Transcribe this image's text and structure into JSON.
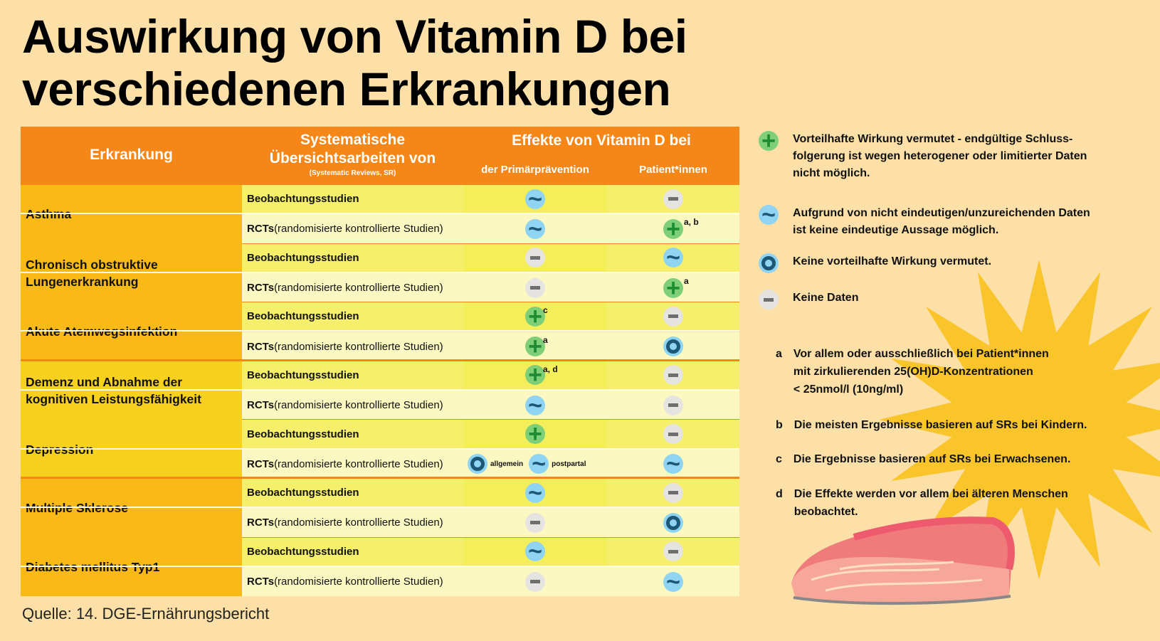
{
  "title_line1": "Auswirkung von Vitamin D bei",
  "title_line2": "verschiedenen Erkrankungen",
  "header": {
    "disease": "Erkrankung",
    "reviews1": "Systematische",
    "reviews2": "Übersichtsarbeiten von",
    "reviews_sub": "(Systematic Reviews, SR)",
    "effects": "Effekte von Vitamin D bei",
    "prim": "der Primärprävention",
    "patients": "Patient*innen"
  },
  "study_types": {
    "obs": "Beobachtungsstudien",
    "rct_bold": "RCTs",
    "rct_rest": " (randomisierte kontrollierte Studien)"
  },
  "diseases": [
    {
      "name": "Asthma",
      "color": "#f9b916",
      "rows": [
        {
          "prim": [
            "tilde"
          ],
          "pat": "minus"
        },
        {
          "prim": [
            "tilde"
          ],
          "pat": "plus",
          "pat_note": "a, b"
        }
      ]
    },
    {
      "name": "Chronisch obstruktive Lungenerkrankung",
      "color": "#f9b916",
      "rows": [
        {
          "prim": [
            "minus"
          ],
          "pat": "tilde"
        },
        {
          "prim": [
            "minus"
          ],
          "pat": "plus",
          "pat_note": "a"
        }
      ]
    },
    {
      "name": "Akute Atemwegsinfektion",
      "color": "#f9b916",
      "rows": [
        {
          "prim": [
            "plus"
          ],
          "prim_note": "c",
          "pat": "minus"
        },
        {
          "prim": [
            "plus"
          ],
          "prim_note": "a",
          "pat": "ring"
        }
      ],
      "sep": true
    },
    {
      "name": "Demenz und Abnahme der kognitiven Leistungsfähigkeit",
      "color": "#f7d11d",
      "rows": [
        {
          "prim": [
            "plus"
          ],
          "prim_note": "a, d",
          "pat": "minus"
        },
        {
          "prim": [
            "tilde"
          ],
          "pat": "minus"
        }
      ]
    },
    {
      "name": "Depression",
      "color": "#f7d11d",
      "rows": [
        {
          "prim": [
            "plus"
          ],
          "pat": "minus"
        },
        {
          "prim": [
            "ring",
            "tilde"
          ],
          "prim_labels": [
            "allgemein",
            "postpartal"
          ],
          "pat": "tilde"
        }
      ],
      "sep": true
    },
    {
      "name": "Multiple Sklerose",
      "color": "#f9b916",
      "rows": [
        {
          "prim": [
            "tilde"
          ],
          "pat": "minus"
        },
        {
          "prim": [
            "minus"
          ],
          "pat": "ring"
        }
      ]
    },
    {
      "name": "Diabetes mellitus Typ1",
      "color": "#f9b916",
      "rows": [
        {
          "prim": [
            "tilde"
          ],
          "pat": "minus"
        },
        {
          "prim": [
            "minus"
          ],
          "pat": "tilde"
        }
      ]
    }
  ],
  "legend": [
    {
      "icon": "plus",
      "text": "Vorteilhafte Wirkung vermutet - endgültige Schluss-\nfolgerung ist wegen heterogener oder limitierter Daten\nnicht möglich."
    },
    {
      "icon": "tilde",
      "text": "Aufgrund von nicht eindeutigen/unzureichenden Daten\nist keine eindeutige Aussage möglich."
    },
    {
      "icon": "ring",
      "text": "Keine vorteilhafte Wirkung vermutet."
    },
    {
      "icon": "minus",
      "text": "Keine Daten"
    }
  ],
  "footnotes": [
    {
      "letter": "a",
      "text": "Vor allem oder ausschließlich bei Patient*innen\nmit zirkulierenden 25(OH)D-Konzentrationen\n< 25nmol/l (10ng/ml)"
    },
    {
      "letter": "b",
      "text": "Die meisten Ergebnisse basieren auf SRs bei Kindern."
    },
    {
      "letter": "c",
      "text": "Die Ergebnisse basieren auf SRs bei Erwachsenen."
    },
    {
      "letter": "d",
      "text": "Die Effekte werden vor allem bei älteren Menschen\nbeobachtet."
    }
  ],
  "source": "Quelle: 14. DGE-Ernährungsbericht",
  "colors": {
    "header": "#f58718",
    "obs_row": "#f5ef6c",
    "rct_row": "#fbf8c2",
    "separator": "#f58718"
  }
}
